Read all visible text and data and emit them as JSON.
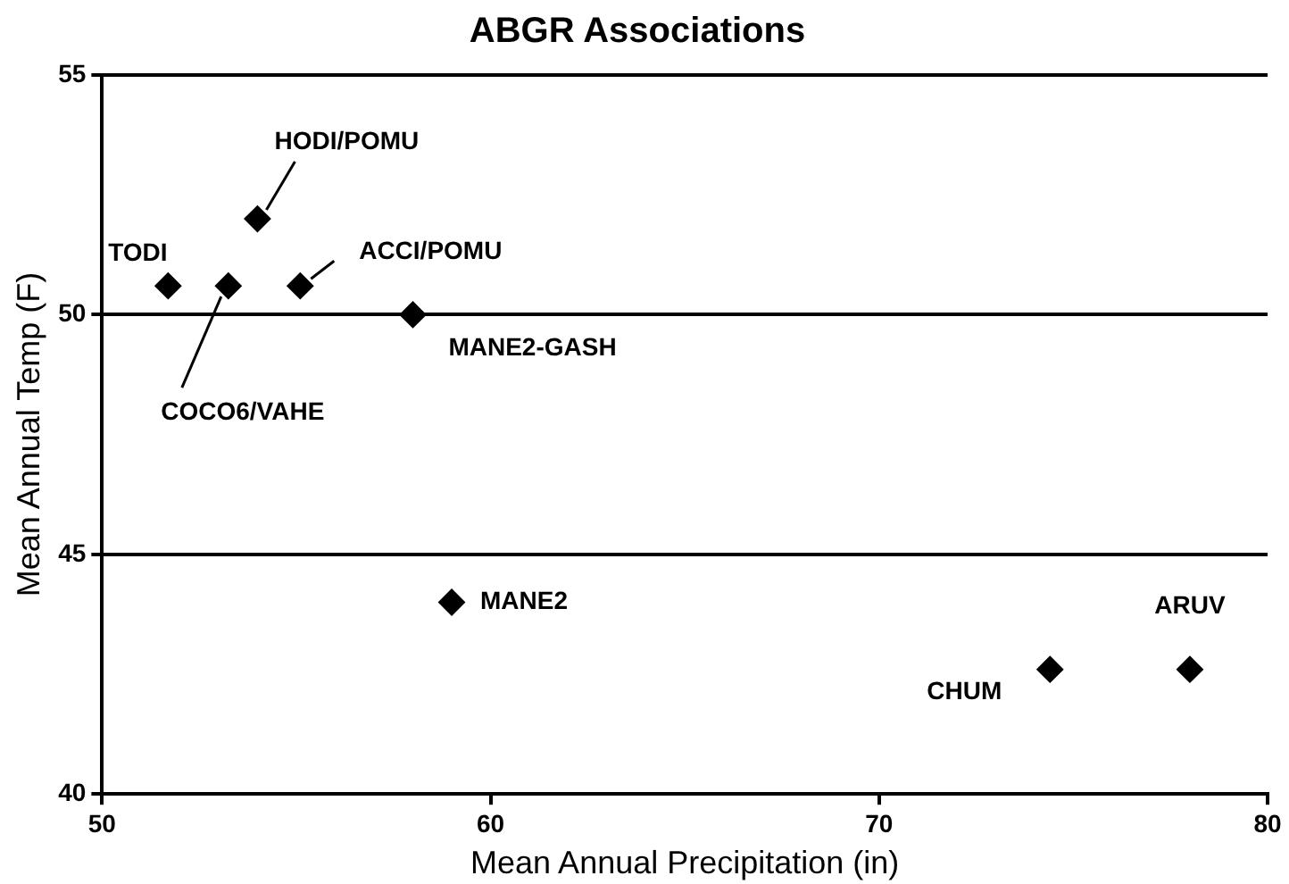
{
  "chart_data": {
    "type": "scatter",
    "title": "ABGR Associations",
    "xlabel": "Mean Annual Precipitation (in)",
    "ylabel": "Mean Annual Temp (F)",
    "series": [
      {
        "color": "#000000",
        "x": [
          51.7,
          53.25,
          54.0,
          55.1,
          58.0,
          59.0,
          74.4,
          78.0
        ],
        "values": [
          50.6,
          50.6,
          52.0,
          50.6,
          50.0,
          44.0,
          42.6,
          42.6
        ]
      }
    ],
    "xlim": [
      50,
      80
    ],
    "xticks": [
      50,
      60,
      70,
      80
    ],
    "ylim": [
      40,
      55
    ],
    "yticks": [
      40,
      45,
      50,
      55
    ],
    "grid": "y",
    "marker": "diamond",
    "legend": false,
    "annotations": [
      {
        "text": "TODI",
        "x": 51.7,
        "y": 50.6
      },
      {
        "text": "COCO6/VAHE",
        "x": 53.25,
        "y": 50.6
      },
      {
        "text": "HODI/POMU",
        "x": 54.0,
        "y": 52.0
      },
      {
        "text": "ACCI/POMU",
        "x": 55.1,
        "y": 50.6
      },
      {
        "text": "MANE2-GASH",
        "x": 58.0,
        "y": 50.0
      },
      {
        "text": "MANE2",
        "x": 59.0,
        "y": 44.0
      },
      {
        "text": "CHUM",
        "x": 74.4,
        "y": 42.6
      },
      {
        "text": "ARUV",
        "x": 78.0,
        "y": 42.6
      }
    ]
  }
}
